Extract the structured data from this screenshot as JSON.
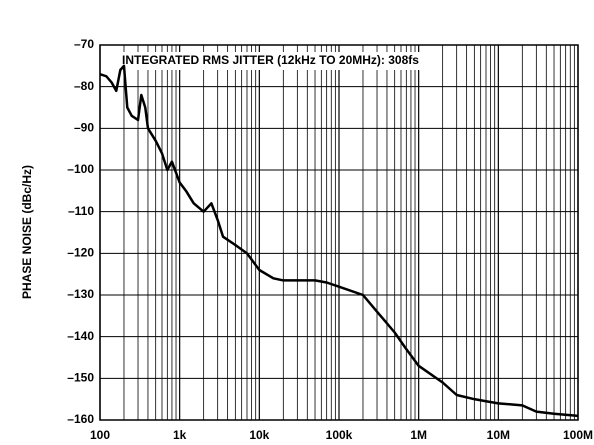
{
  "chart_data": {
    "type": "line",
    "ylabel": "PHASE NOISE (dBc/Hz)",
    "annotation": "INTEGRATED RMS JITTER (12kHz TO 20MHz): 308fs",
    "log_x": true,
    "grid": true,
    "xlim": [
      100,
      100000000
    ],
    "xticks": [
      100,
      {
        "value": 1000,
        "label": "1k"
      },
      {
        "value": 10000,
        "label": "10k"
      },
      {
        "value": 100000,
        "label": "100k"
      },
      {
        "value": 1000000,
        "label": "1M"
      },
      {
        "value": 10000000,
        "label": "10M"
      },
      {
        "value": 100000000,
        "label": "100M"
      }
    ],
    "xminorticks": [
      200,
      300,
      400,
      500,
      600,
      700,
      800,
      900,
      2000,
      3000,
      4000,
      5000,
      6000,
      7000,
      8000,
      9000,
      20000,
      30000,
      40000,
      50000,
      60000,
      70000,
      80000,
      90000,
      200000,
      300000,
      400000,
      500000,
      600000,
      700000,
      800000,
      900000,
      2000000,
      3000000,
      4000000,
      5000000,
      6000000,
      7000000,
      8000000,
      9000000,
      20000000,
      30000000,
      40000000,
      50000000,
      60000000,
      70000000,
      80000000,
      90000000
    ],
    "ylim": [
      -160,
      -70
    ],
    "yticks": [
      {
        "value": -70,
        "label": "–70"
      },
      {
        "value": -80,
        "label": "–80"
      },
      {
        "value": -90,
        "label": "–90"
      },
      {
        "value": -100,
        "label": "–100"
      },
      {
        "value": -110,
        "label": "–110"
      },
      {
        "value": -120,
        "label": "–120"
      },
      {
        "value": -130,
        "label": "–130"
      },
      {
        "value": -140,
        "label": "–140"
      },
      {
        "value": -150,
        "label": "–150"
      },
      {
        "value": -160,
        "label": "–160"
      }
    ],
    "x": [
      100,
      120,
      140,
      160,
      180,
      200,
      220,
      250,
      300,
      330,
      370,
      400,
      500,
      600,
      700,
      800,
      1000,
      1200,
      1500,
      2000,
      2500,
      3000,
      3500,
      5000,
      7000,
      10000,
      15000,
      20000,
      30000,
      50000,
      70000,
      100000,
      200000,
      300000,
      500000,
      700000,
      1000000,
      2000000,
      3000000,
      5000000,
      7000000,
      10000000,
      20000000,
      30000000,
      50000000,
      100000000
    ],
    "series": [
      {
        "name": "phase-noise",
        "color": "#000000",
        "values": [
          -77,
          -77.5,
          -79,
          -81,
          -76,
          -75,
          -85,
          -87,
          -88,
          -82,
          -85,
          -90,
          -93,
          -96,
          -100,
          -98,
          -103,
          -105,
          -108,
          -110,
          -108,
          -112,
          -116,
          -118,
          -120,
          -124,
          -126,
          -126.5,
          -126.5,
          -126.5,
          -127,
          -128,
          -130,
          -134,
          -139,
          -143,
          -147,
          -151,
          -154,
          -155,
          -155.5,
          -156,
          -156.5,
          -158,
          -158.5,
          -159
        ]
      }
    ]
  }
}
